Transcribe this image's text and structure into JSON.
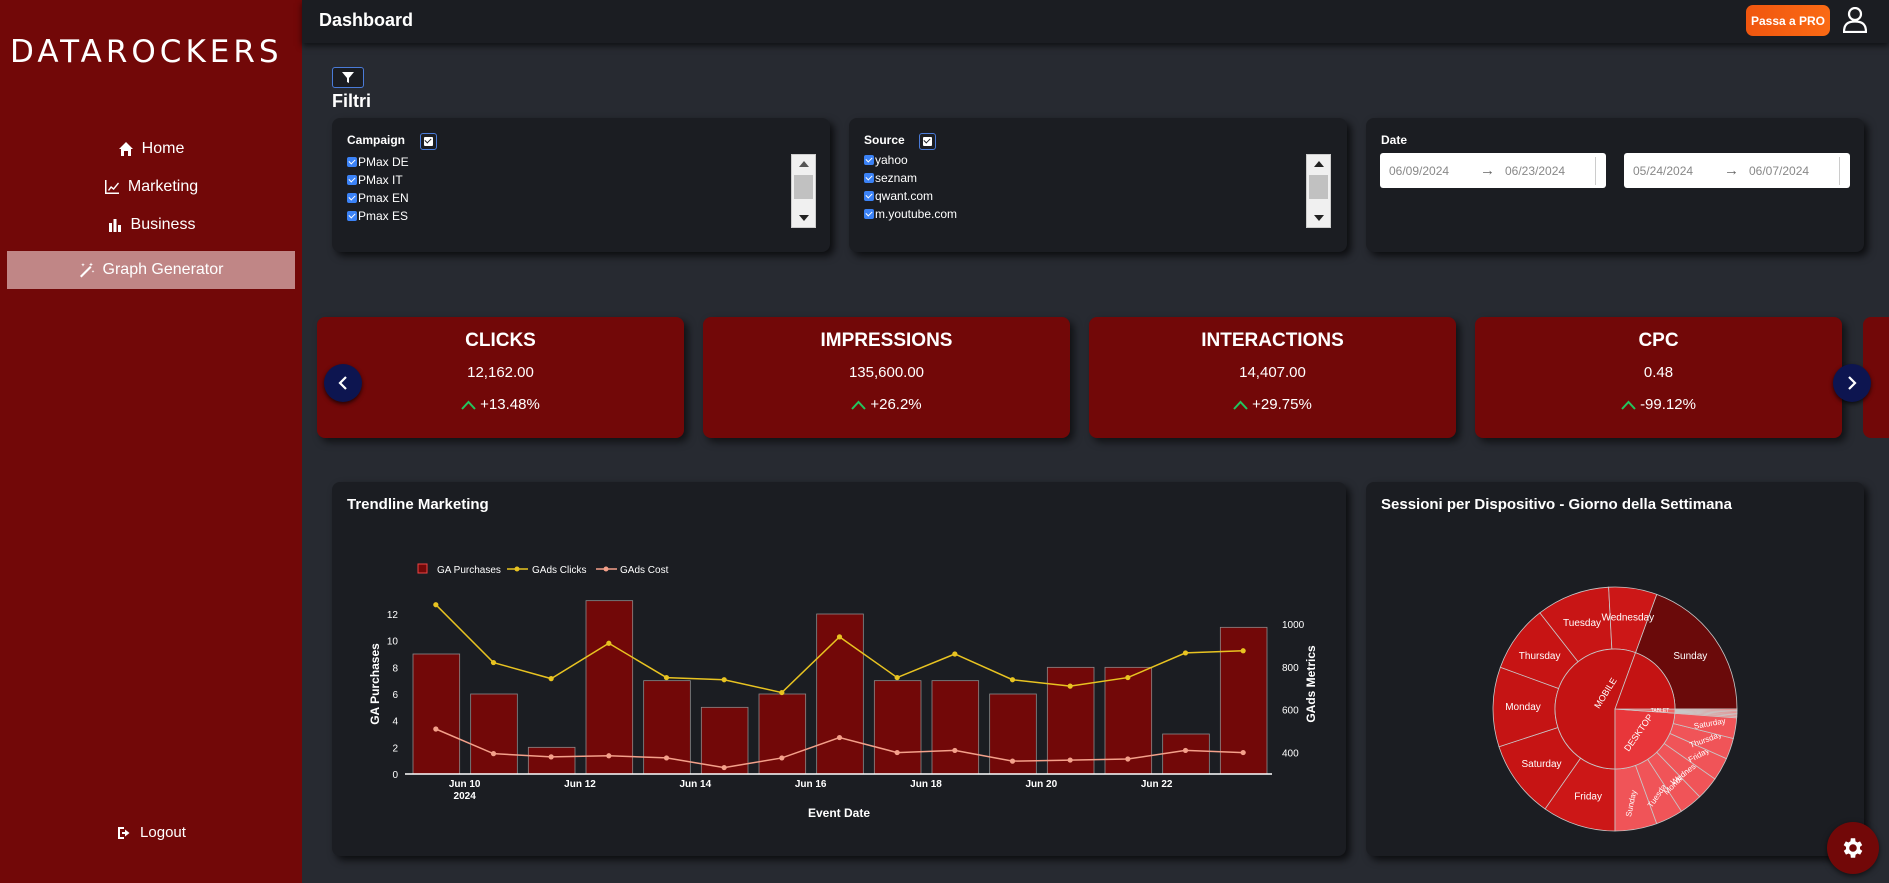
{
  "app": {
    "logo": "DATAROCKERS",
    "page_title": "Dashboard",
    "pro_button": "Passa a PRO"
  },
  "sidebar": {
    "items": [
      {
        "label": "Home",
        "icon": "home-icon"
      },
      {
        "label": "Marketing",
        "icon": "chart-line-icon"
      },
      {
        "label": "Business",
        "icon": "bar-chart-icon"
      },
      {
        "label": "Graph Generator",
        "icon": "magic-wand-icon",
        "active": true
      }
    ],
    "logout": "Logout"
  },
  "filters": {
    "title": "Filtri",
    "campaign": {
      "label": "Campaign",
      "options": [
        "PMax DE",
        "PMax IT",
        "Pmax EN",
        "Pmax ES"
      ]
    },
    "source": {
      "label": "Source",
      "options": [
        "yahoo",
        "seznam",
        "qwant.com",
        "m.youtube.com"
      ]
    },
    "date": {
      "label": "Date",
      "range1_start": "06/09/2024",
      "range1_end": "06/23/2024",
      "range2_start": "05/24/2024",
      "range2_end": "06/07/2024"
    }
  },
  "kpis": [
    {
      "title": "CLICKS",
      "value": "12,162.00",
      "delta": "+13.48%"
    },
    {
      "title": "IMPRESSIONS",
      "value": "135,600.00",
      "delta": "+26.2%"
    },
    {
      "title": "INTERACTIONS",
      "value": "14,407.00",
      "delta": "+29.75%"
    },
    {
      "title": "CPC",
      "value": "0.48",
      "delta": "-99.12%"
    }
  ],
  "colors": {
    "sidebar": "#720808",
    "accent": "#f0560f",
    "up_arrow": "#22c55e",
    "gads_clicks": "#e8c321",
    "gads_cost": "#f4a08a"
  },
  "trend": {
    "title": "Trendline Marketing",
    "legend": [
      "GA Purchases",
      "GAds Clicks",
      "GAds Cost"
    ],
    "xlabel": "Event Date",
    "ylabel_left": "GA Purchases",
    "ylabel_right": "GAds Metrics",
    "x_ticks": [
      "Jun 10",
      "Jun 12",
      "Jun 14",
      "Jun 16",
      "Jun 18",
      "Jun 20",
      "Jun 22"
    ],
    "x_year": "2024",
    "y_left_ticks": [
      "0",
      "2",
      "4",
      "6",
      "8",
      "10",
      "12"
    ],
    "y_right_ticks": [
      "400",
      "600",
      "800",
      "1000"
    ]
  },
  "sunburst": {
    "title": "Sessioni per Dispositivo - Giorno della Settimana",
    "center_mobile": "MOBILE",
    "center_desktop": "DESKTOP",
    "center_tablet": "TABLET",
    "mobile_days": [
      "Sunday",
      "Friday",
      "Saturday",
      "Monday",
      "Thursday",
      "Tuesday",
      "Wednesday"
    ],
    "desktop_days": [
      "Sunday",
      "Tuesday",
      "Monday",
      "Wednesday",
      "Friday",
      "Thursday",
      "Saturday"
    ]
  },
  "chart_data": [
    {
      "type": "bar",
      "title": "Trendline Marketing",
      "xlabel": "Event Date",
      "ylabel": "GA Purchases",
      "x": [
        "2024-06-09",
        "2024-06-10",
        "2024-06-11",
        "2024-06-12",
        "2024-06-13",
        "2024-06-14",
        "2024-06-15",
        "2024-06-16",
        "2024-06-17",
        "2024-06-18",
        "2024-06-19",
        "2024-06-20",
        "2024-06-21",
        "2024-06-22",
        "2024-06-23"
      ],
      "ylim": [
        0,
        13
      ],
      "series": [
        {
          "name": "GA Purchases",
          "axis": "left",
          "kind": "bar",
          "values": [
            9,
            6,
            2,
            13,
            7,
            5,
            6,
            12,
            7,
            7,
            6,
            8,
            8,
            3,
            11
          ]
        },
        {
          "name": "GAds Clicks",
          "axis": "right",
          "kind": "line",
          "values": [
            1090,
            820,
            745,
            910,
            750,
            740,
            680,
            940,
            750,
            860,
            740,
            710,
            750,
            865,
            875
          ]
        },
        {
          "name": "GAds Cost",
          "axis": "right",
          "kind": "line",
          "values": [
            510,
            395,
            380,
            385,
            375,
            330,
            375,
            470,
            400,
            410,
            360,
            365,
            370,
            410,
            400
          ]
        }
      ],
      "y2lim": [
        300,
        1100
      ]
    },
    {
      "type": "pie",
      "title": "Sessioni per Dispositivo - Giorno della Settimana",
      "categories": [
        "MOBILE",
        "DESKTOP",
        "TABLET"
      ],
      "values": [
        0.76,
        0.19,
        0.05
      ]
    }
  ]
}
